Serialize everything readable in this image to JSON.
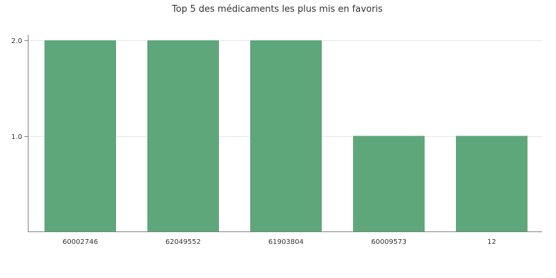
{
  "chart_data": {
    "type": "bar",
    "title": "Top 5 des médicaments les plus mis en favoris",
    "categories": [
      "60002746",
      "62049552",
      "61903804",
      "60009573",
      "12"
    ],
    "values": [
      2,
      2,
      2,
      1,
      1
    ],
    "xlabel": "",
    "ylabel": "",
    "ylim": [
      0,
      2
    ],
    "yticks": [
      1.0,
      2.0
    ],
    "ytick_labels": [
      "1.0",
      "2.0"
    ],
    "grid": true,
    "legend": "none",
    "bar_color": "#5ea77a"
  }
}
